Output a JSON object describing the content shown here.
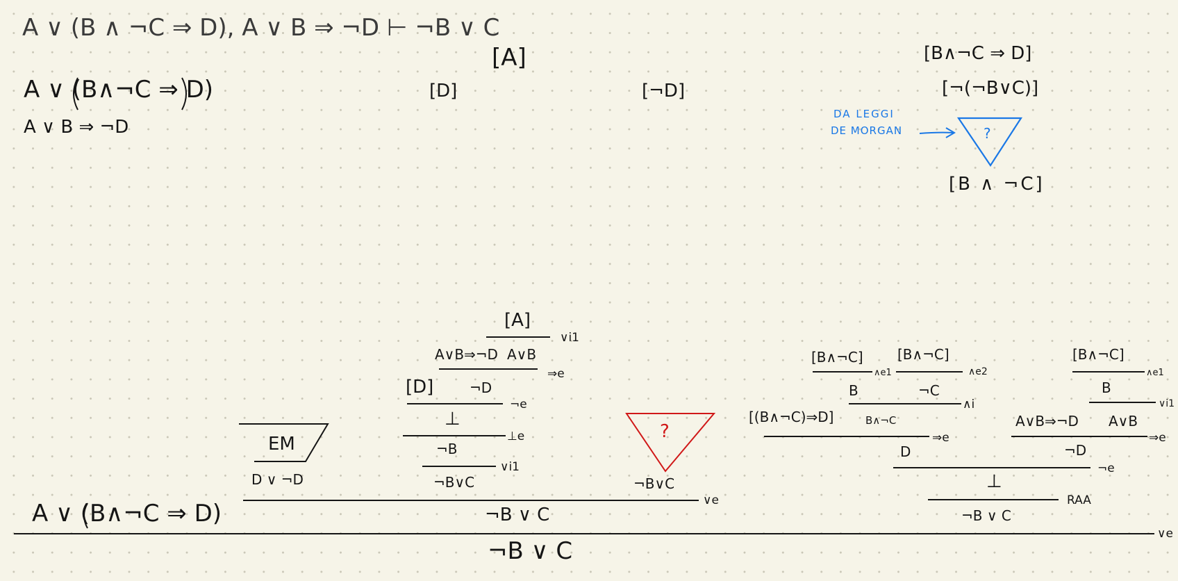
{
  "title": "A ∨ (B ∧ ¬C ⇒ D), A ∨ B ⇒ ¬D ⊢ ¬B ∨ C",
  "premises": [
    "A ∨ (B∧¬C ⇒ D)",
    "A ∨ B ⇒ ¬D"
  ],
  "top_assumptions": {
    "a": "[A]",
    "d": "[D]",
    "not_d": "[¬D]"
  },
  "side_note": {
    "a1": "[B∧¬C ⇒ D]",
    "a2": "[¬(¬B∨C)]",
    "annotation_line1": "DA LEGGI",
    "annotation_line2": "DE MORGAN",
    "triangle_mark": "?",
    "result": "[B ∧ ¬C]"
  },
  "proof": {
    "main_premise": "A ∨ (B∧¬C ⇒ D)",
    "em_box": "EM",
    "em_result": "D ∨ ¬D",
    "mid": {
      "hyp_a": "[A]",
      "rule_or_i1": "∨i1",
      "f_imp": "A∨B⇒¬D",
      "f_or": "A∨B",
      "rule_imp_e": "⇒e",
      "hyp_d": "[D]",
      "f_not_d": "¬D",
      "rule_not_e": "¬e",
      "bottom": "⊥",
      "rule_bot_e": "⊥e",
      "not_b": "¬B",
      "rule_or_i1b": "∨i1",
      "or_result": "¬B∨C"
    },
    "red_mark": "?",
    "red_result": "¬B∨C",
    "rule_or_e1": "∨e",
    "mid_result": "¬B ∨ C",
    "right": {
      "h1": "[B∧¬C]",
      "h2": "[B∧¬C]",
      "r_and_e1": "∧e1",
      "r_and_e2": "∧e2",
      "b": "B",
      "not_c": "¬C",
      "r_and_i": "∧i",
      "h_imp": "[(B∧¬C)⇒D]",
      "b_and_not_c": "B∧¬C",
      "r_imp_e": "⇒e",
      "d": "D",
      "h3": "[B∧¬C]",
      "r_and_e1b": "∧e1",
      "b2": "B",
      "r_or_i1": "∨i1",
      "f_imp": "A∨B⇒¬D",
      "f_or": "A∨B",
      "r_imp_e2": "⇒e",
      "not_d": "¬D",
      "r_not_e": "¬e",
      "bottom": "⊥",
      "r_raa": "RAA",
      "result": "¬B ∨ C"
    },
    "rule_or_e2": "∨e",
    "conclusion": "¬B ∨ C"
  },
  "colors": {
    "ink": "#151515",
    "blue": "#1a78e6",
    "red": "#d01818",
    "paper": "#f6f4e8"
  }
}
